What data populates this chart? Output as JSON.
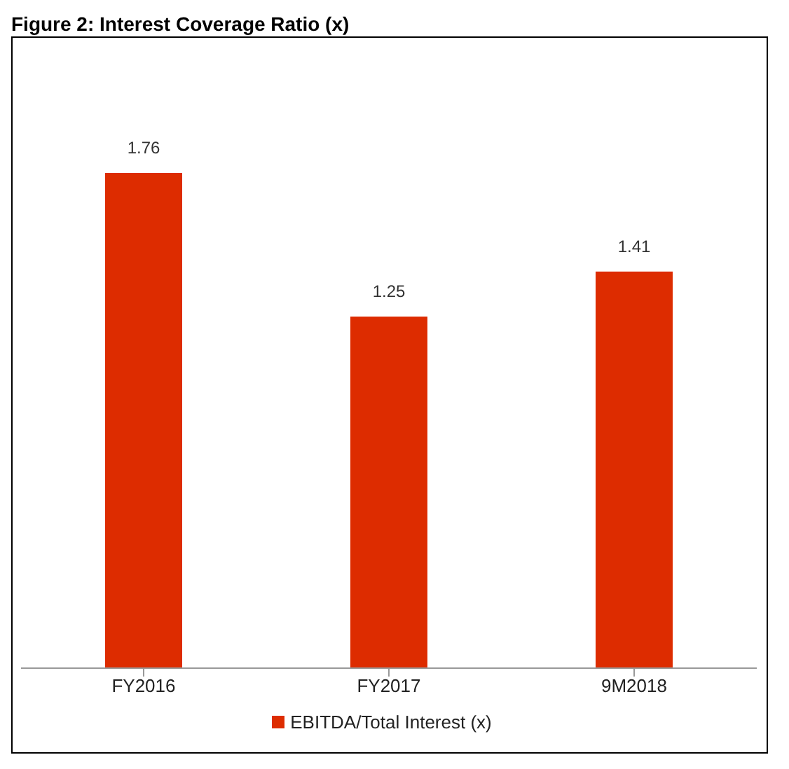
{
  "chart_data": {
    "type": "bar",
    "title": "Figure 2: Interest Coverage Ratio (x)",
    "categories": [
      "FY2016",
      "FY2017",
      "9M2018"
    ],
    "series": [
      {
        "name": "EBITDA/Total Interest (x)",
        "color": "#dd2c00",
        "values": [
          1.76,
          1.25,
          1.41
        ]
      }
    ],
    "data_labels": true,
    "legend": "bottom",
    "grid": false
  }
}
